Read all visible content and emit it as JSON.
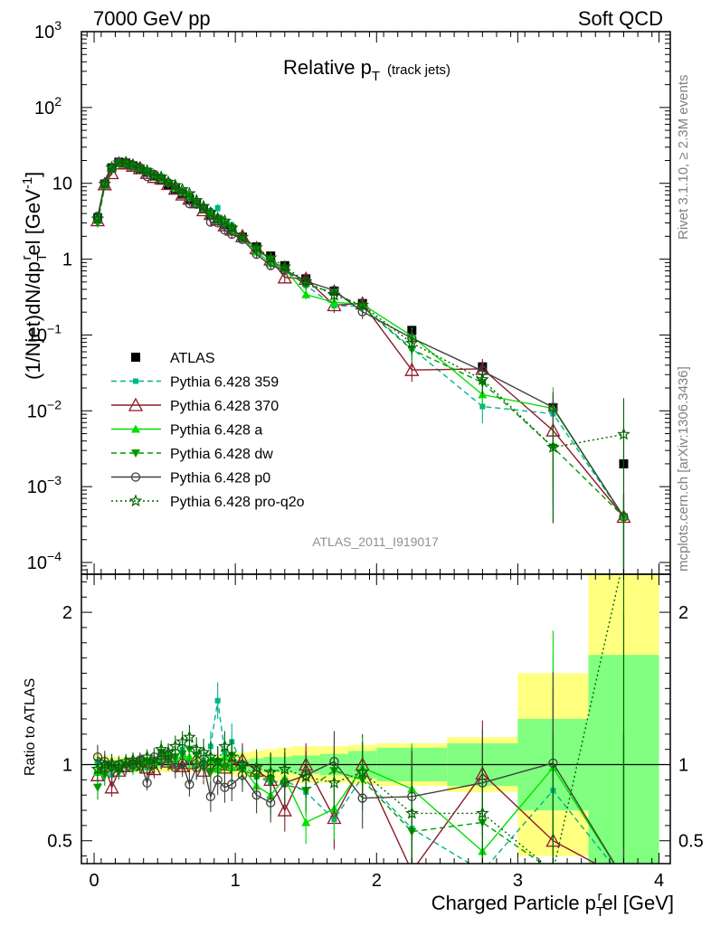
{
  "header": {
    "left": "7000 GeV pp",
    "right": "Soft QCD"
  },
  "side_labels": {
    "rivet": "Rivet 3.1.10, ≥ 2.3M events",
    "mcplots": "mcplots.cern.ch [arXiv:1306.3436]"
  },
  "chart_data": {
    "type": "line",
    "title": "Relative p_T (track jets)",
    "title_main": "Relative p",
    "title_sub": "T",
    "title_note": "(track jets)",
    "watermark": "ATLAS_2011_I919017",
    "ylabel_main": "(1/Njet)dN/dp_T^rel [GeV^-1]",
    "ylabel_ratio": "Ratio to ATLAS",
    "xlabel": "Charged Particle p_T^rel [GeV]",
    "xlim": [
      0,
      4
    ],
    "ylim_main": [
      0.0001,
      1000
    ],
    "ylim_ratio": [
      0.35,
      2.25
    ],
    "y_scale_main": "log",
    "x_ticks": [
      "0",
      "1",
      "2",
      "3",
      "4"
    ],
    "y_ticks_main": [
      {
        "base": "10",
        "exp": "3",
        "v": 1000
      },
      {
        "base": "10",
        "exp": "2",
        "v": 100
      },
      {
        "base": "10",
        "exp": "",
        "v": 10
      },
      {
        "base": "1",
        "exp": "",
        "v": 1
      },
      {
        "base": "10",
        "exp": "−1",
        "v": 0.1
      },
      {
        "base": "10",
        "exp": "−2",
        "v": 0.01
      },
      {
        "base": "10",
        "exp": "−3",
        "v": 0.001
      },
      {
        "base": "10",
        "exp": "−4",
        "v": 0.0001
      }
    ],
    "y_ticks_ratio": [
      "0.5",
      "1",
      "2"
    ],
    "legend_position": "lower-left",
    "colors": {
      "atlas": "#000000",
      "p359": "#00b58a",
      "p370": "#8b1a2a",
      "pa": "#00e000",
      "pdw": "#009c00",
      "pp0": "#404040",
      "pq2o": "#006400",
      "band_outer": "#ffff80",
      "band_inner": "#80ff80"
    },
    "x": [
      0.025,
      0.075,
      0.125,
      0.175,
      0.225,
      0.275,
      0.325,
      0.375,
      0.425,
      0.475,
      0.525,
      0.575,
      0.625,
      0.675,
      0.725,
      0.775,
      0.825,
      0.875,
      0.925,
      0.975,
      1.05,
      1.15,
      1.25,
      1.35,
      1.5,
      1.7,
      1.9,
      2.25,
      2.75,
      3.25,
      3.75
    ],
    "atlas": [
      3.5,
      9.8,
      16.0,
      19.0,
      18.5,
      17.0,
      15.5,
      14.0,
      12.5,
      11.0,
      9.6,
      8.4,
      7.2,
      6.2,
      5.4,
      4.6,
      3.9,
      3.35,
      2.85,
      2.45,
      1.95,
      1.45,
      1.1,
      0.82,
      0.55,
      0.38,
      0.26,
      0.115,
      0.038,
      0.011,
      0.002
    ],
    "band_edges": [
      0.0,
      0.05,
      0.1,
      0.15,
      0.2,
      0.25,
      0.3,
      0.35,
      0.4,
      0.45,
      0.5,
      0.55,
      0.6,
      0.65,
      0.7,
      0.75,
      0.8,
      0.85,
      0.9,
      0.95,
      1.0,
      1.1,
      1.2,
      1.3,
      1.4,
      1.6,
      1.8,
      2.0,
      2.5,
      3.0,
      3.5,
      4.0
    ],
    "band_outer": [
      0.07,
      0.06,
      0.05,
      0.05,
      0.05,
      0.05,
      0.05,
      0.05,
      0.05,
      0.05,
      0.05,
      0.05,
      0.05,
      0.05,
      0.05,
      0.05,
      0.05,
      0.06,
      0.06,
      0.07,
      0.08,
      0.09,
      0.1,
      0.11,
      0.12,
      0.12,
      0.13,
      0.14,
      0.18,
      0.6,
      1.25
    ],
    "band_inner": [
      0.03,
      0.03,
      0.02,
      0.02,
      0.02,
      0.02,
      0.02,
      0.02,
      0.02,
      0.02,
      0.02,
      0.02,
      0.02,
      0.02,
      0.02,
      0.02,
      0.02,
      0.03,
      0.03,
      0.03,
      0.03,
      0.04,
      0.05,
      0.05,
      0.06,
      0.07,
      0.09,
      0.11,
      0.14,
      0.3,
      0.72
    ],
    "series": [
      {
        "name": "ATLAS",
        "key": "atlas",
        "marker": "square",
        "line": "none",
        "ratio": [
          1,
          1,
          1,
          1,
          1,
          1,
          1,
          1,
          1,
          1,
          1,
          1,
          1,
          1,
          1,
          1,
          1,
          1,
          1,
          1,
          1,
          1,
          1,
          1,
          1,
          1,
          1,
          1,
          1,
          1,
          1
        ],
        "err": [
          0.05,
          0.04,
          0.03,
          0.03,
          0.03,
          0.03,
          0.03,
          0.03,
          0.03,
          0.03,
          0.03,
          0.03,
          0.03,
          0.03,
          0.03,
          0.03,
          0.03,
          0.04,
          0.04,
          0.04,
          0.05,
          0.06,
          0.07,
          0.08,
          0.09,
          0.1,
          0.11,
          0.12,
          0.16,
          0.5,
          1.0
        ]
      },
      {
        "name": "Pythia 6.428 359",
        "key": "p359",
        "marker": "small-square",
        "line": "dashed",
        "ratio": [
          1.02,
          0.97,
          0.93,
          1.0,
          0.99,
          1.02,
          1.0,
          0.98,
          1.03,
          1.05,
          1.07,
          1.05,
          1.1,
          1.02,
          0.99,
          1.03,
          1.12,
          1.42,
          1.08,
          1.15,
          1.0,
          0.92,
          0.88,
          0.9,
          0.82,
          0.64,
          0.92,
          0.58,
          0.3,
          0.83,
          0.2
        ],
        "err": [
          0.1,
          0.08,
          0.06,
          0.05,
          0.05,
          0.05,
          0.05,
          0.06,
          0.06,
          0.06,
          0.07,
          0.07,
          0.08,
          0.08,
          0.09,
          0.1,
          0.1,
          0.12,
          0.12,
          0.12,
          0.12,
          0.13,
          0.14,
          0.15,
          0.15,
          0.2,
          0.2,
          0.3,
          0.4,
          0.9,
          1.0
        ]
      },
      {
        "name": "Pythia 6.428 370",
        "key": "p370",
        "marker": "open-triangle",
        "line": "solid",
        "ratio": [
          0.93,
          0.99,
          0.85,
          0.96,
          0.99,
          1.0,
          1.02,
          0.98,
          0.97,
          1.05,
          1.02,
          1.01,
          0.99,
          1.01,
          1.04,
          0.96,
          1.01,
          1.0,
          0.98,
          1.0,
          1.03,
          0.96,
          0.9,
          0.7,
          1.0,
          0.65,
          1.0,
          0.3,
          0.94,
          0.5,
          0.2
        ],
        "err": [
          0.08,
          0.07,
          0.06,
          0.05,
          0.05,
          0.05,
          0.05,
          0.05,
          0.06,
          0.06,
          0.06,
          0.07,
          0.07,
          0.08,
          0.08,
          0.09,
          0.1,
          0.1,
          0.1,
          0.11,
          0.11,
          0.12,
          0.13,
          0.14,
          0.14,
          0.2,
          0.2,
          0.3,
          0.35,
          0.9,
          1.0
        ]
      },
      {
        "name": "Pythia 6.428 a",
        "key": "pa",
        "marker": "triangle",
        "line": "solid",
        "ratio": [
          0.95,
          0.99,
          0.98,
          1.01,
          1.0,
          0.98,
          1.01,
          1.03,
          1.02,
          1.04,
          1.07,
          1.02,
          1.06,
          1.05,
          1.01,
          0.99,
          1.03,
          0.97,
          1.05,
          0.98,
          0.98,
          0.86,
          0.8,
          0.91,
          0.62,
          0.71,
          0.98,
          0.84,
          0.43,
          0.98,
          0.2
        ],
        "err": [
          0.08,
          0.07,
          0.06,
          0.05,
          0.05,
          0.05,
          0.05,
          0.05,
          0.06,
          0.06,
          0.06,
          0.07,
          0.07,
          0.08,
          0.08,
          0.09,
          0.1,
          0.1,
          0.1,
          0.11,
          0.11,
          0.12,
          0.13,
          0.14,
          0.14,
          0.2,
          0.2,
          0.3,
          0.35,
          0.9,
          1.0
        ]
      },
      {
        "name": "Pythia 6.428 dw",
        "key": "pdw",
        "marker": "down-triangle",
        "line": "dashed",
        "ratio": [
          0.85,
          0.93,
          0.97,
          0.95,
          1.0,
          0.99,
          1.02,
          1.01,
          1.03,
          1.08,
          1.02,
          1.05,
          1.07,
          1.1,
          1.06,
          1.0,
          0.95,
          1.02,
          0.98,
          1.06,
          0.97,
          0.92,
          0.9,
          0.87,
          0.83,
          0.96,
          0.9,
          0.56,
          0.62,
          0.3,
          0.2
        ],
        "err": [
          0.08,
          0.07,
          0.06,
          0.05,
          0.05,
          0.05,
          0.05,
          0.05,
          0.06,
          0.06,
          0.06,
          0.07,
          0.07,
          0.08,
          0.08,
          0.09,
          0.1,
          0.1,
          0.1,
          0.11,
          0.11,
          0.12,
          0.13,
          0.14,
          0.14,
          0.2,
          0.2,
          0.3,
          0.35,
          0.9,
          1.0
        ]
      },
      {
        "name": "Pythia 6.428 p0",
        "key": "pp0",
        "marker": "open-circle",
        "line": "solid",
        "ratio": [
          1.05,
          1.02,
          0.99,
          1.0,
          0.98,
          1.0,
          1.03,
          0.88,
          1.05,
          1.03,
          1.06,
          0.98,
          1.01,
          0.87,
          0.98,
          1.0,
          0.79,
          0.9,
          0.85,
          0.87,
          0.93,
          0.8,
          0.75,
          0.88,
          0.93,
          1.02,
          0.78,
          0.79,
          0.88,
          1.01,
          0.2
        ],
        "err": [
          0.08,
          0.07,
          0.06,
          0.05,
          0.05,
          0.05,
          0.05,
          0.05,
          0.06,
          0.06,
          0.06,
          0.07,
          0.07,
          0.08,
          0.08,
          0.09,
          0.1,
          0.1,
          0.1,
          0.11,
          0.11,
          0.12,
          0.13,
          0.14,
          0.14,
          0.2,
          0.2,
          0.3,
          0.35,
          0.6,
          1.0
        ]
      },
      {
        "name": "Pythia 6.428 pro-q2o",
        "key": "pq2o",
        "marker": "open-star",
        "line": "dotted",
        "ratio": [
          0.97,
          1.0,
          1.01,
          0.98,
          1.02,
          1.03,
          0.99,
          1.05,
          1.0,
          1.1,
          1.08,
          1.12,
          1.15,
          1.18,
          1.1,
          1.08,
          1.05,
          1.02,
          1.12,
          1.05,
          1.0,
          0.98,
          0.95,
          0.97,
          0.92,
          0.88,
          0.95,
          0.68,
          0.68,
          0.3,
          2.45
        ],
        "err": [
          0.08,
          0.07,
          0.06,
          0.05,
          0.05,
          0.05,
          0.05,
          0.05,
          0.06,
          0.06,
          0.06,
          0.07,
          0.07,
          0.08,
          0.08,
          0.09,
          0.1,
          0.1,
          0.1,
          0.11,
          0.11,
          0.12,
          0.13,
          0.14,
          0.14,
          0.2,
          0.2,
          0.3,
          0.35,
          0.9,
          2.0
        ]
      }
    ]
  }
}
